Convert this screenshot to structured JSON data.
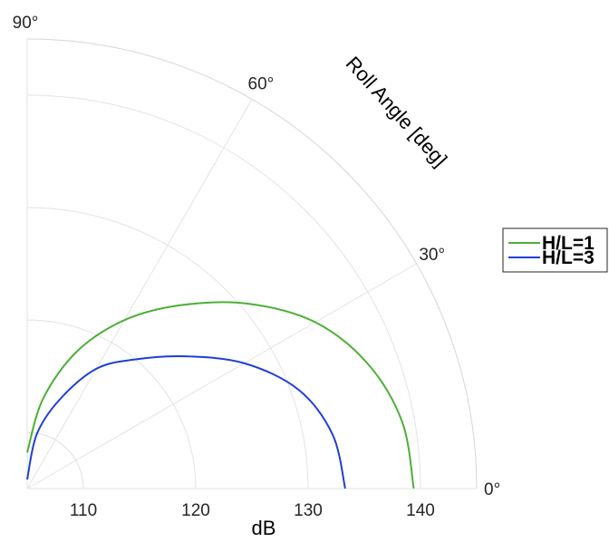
{
  "chart_data": {
    "type": "line",
    "subtype": "polar-quadrant",
    "radial_axis": {
      "label": "dB",
      "range": [
        105,
        145
      ],
      "ticks": [
        110,
        120,
        130,
        140
      ],
      "tick_labels": [
        "110",
        "120",
        "130",
        "140"
      ]
    },
    "angular_axis": {
      "label": "Roll Angle [deg]",
      "range_deg": [
        0,
        90
      ],
      "ticks_deg": [
        0,
        30,
        60,
        90
      ],
      "tick_labels": [
        "0°",
        "30°",
        "60°",
        "90°"
      ]
    },
    "grid": true,
    "legend_position": "right",
    "series": [
      {
        "name": "H/L=1",
        "color": "#4daf38",
        "angle_deg": [
          0,
          10,
          20,
          30,
          40,
          50,
          60,
          70,
          80,
          90
        ],
        "r_db": [
          139.4,
          138.9,
          137.3,
          134.6,
          130.6,
          126.3,
          122.3,
          118.0,
          113.1,
          108.2
        ]
      },
      {
        "name": "H/L=3",
        "color": "#1f3fd6",
        "angle_deg": [
          0,
          10,
          20,
          30,
          40,
          50,
          60,
          70,
          80,
          90
        ],
        "r_db": [
          133.3,
          132.6,
          130.7,
          127.3,
          123.3,
          120.0,
          117.3,
          113.4,
          109.9,
          105.8
        ]
      }
    ]
  }
}
